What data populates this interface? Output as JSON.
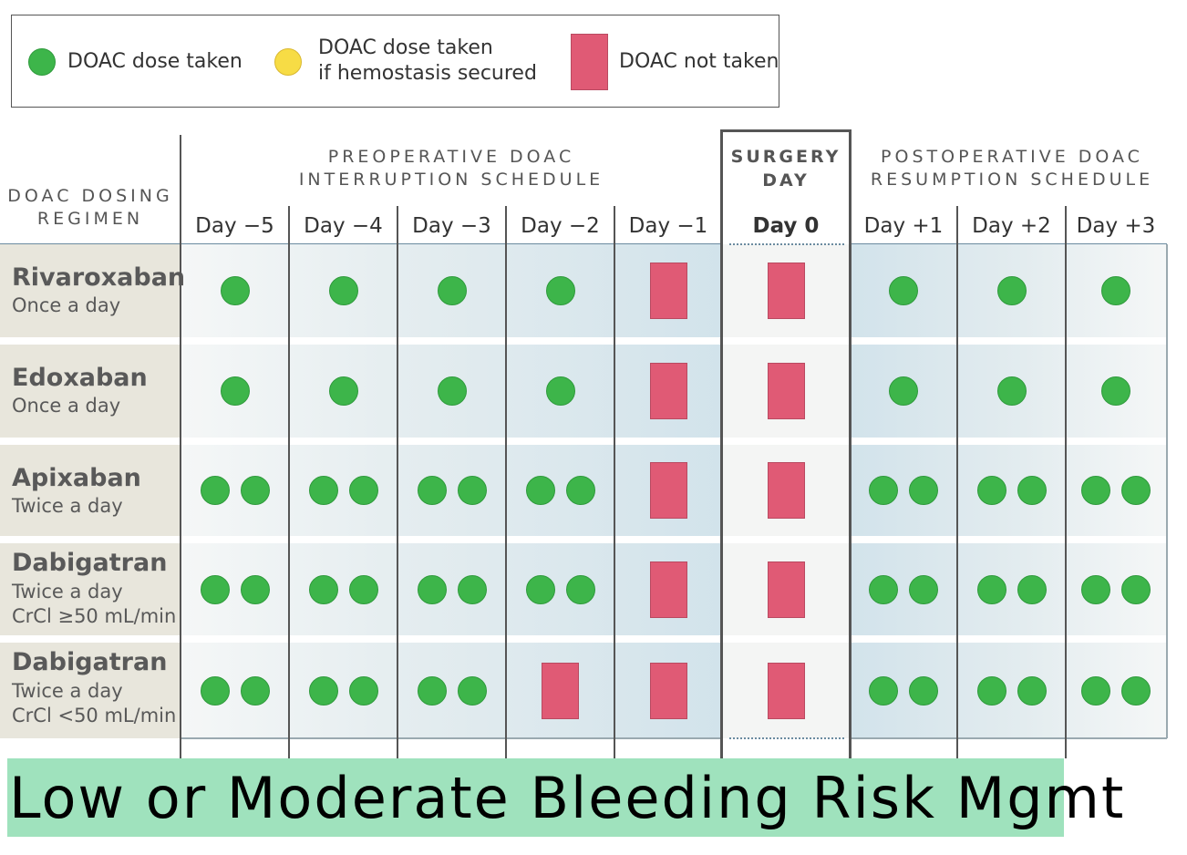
{
  "legend": {
    "taken": "DOAC dose taken",
    "taken_if_line1": "DOAC dose taken",
    "taken_if_line2": "if hemostasis secured",
    "not_taken": "DOAC not taken"
  },
  "headers": {
    "regimen_line1": "DOAC DOSING",
    "regimen_line2": "REGIMEN",
    "preop_line1": "PREOPERATIVE DOAC",
    "preop_line2": "INTERRUPTION SCHEDULE",
    "surgery_line1": "SURGERY",
    "surgery_line2": "DAY",
    "postop_line1": "POSTOPERATIVE DOAC",
    "postop_line2": "RESUMPTION SCHEDULE"
  },
  "days": [
    "Day −5",
    "Day −4",
    "Day −3",
    "Day −2",
    "Day −1",
    "Day 0",
    "Day +1",
    "Day +2",
    "Day +3"
  ],
  "rows": [
    {
      "name": "Rivaroxaban",
      "sub1": "Once a day",
      "sub2": "",
      "doses": [
        1,
        1,
        1,
        1,
        0,
        0,
        1,
        1,
        1
      ]
    },
    {
      "name": "Edoxaban",
      "sub1": "Once a day",
      "sub2": "",
      "doses": [
        1,
        1,
        1,
        1,
        0,
        0,
        1,
        1,
        1
      ]
    },
    {
      "name": "Apixaban",
      "sub1": "Twice a day",
      "sub2": "",
      "doses": [
        2,
        2,
        2,
        2,
        0,
        0,
        2,
        2,
        2
      ]
    },
    {
      "name": "Dabigatran",
      "sub1": "Twice a day",
      "sub2": "CrCl ≥50 mL/min",
      "doses": [
        2,
        2,
        2,
        2,
        0,
        0,
        2,
        2,
        2
      ]
    },
    {
      "name": "Dabigatran",
      "sub1": "Twice a day",
      "sub2": "CrCl <50 mL/min",
      "doses": [
        2,
        2,
        2,
        0,
        0,
        0,
        2,
        2,
        2
      ]
    }
  ],
  "footer": "Low or Moderate Bleeding Risk Mgmt",
  "colors": {
    "taken": "#3db54a",
    "taken_if_hemostasis": "#f7dc45",
    "not_taken": "#e05a75",
    "label_bg": "#e8e6dc"
  }
}
